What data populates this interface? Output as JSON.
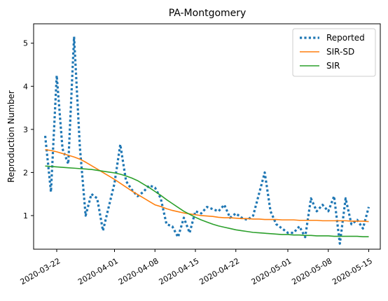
{
  "chart_data": {
    "type": "line",
    "title": "PA-Montgomery",
    "xlabel": "",
    "ylabel": "Reproduction Number",
    "x_range": [
      "2020-03-18",
      "2020-05-17"
    ],
    "ylim": [
      0.22,
      5.45
    ],
    "x_ticks": [
      "2020-03-22",
      "2020-04-01",
      "2020-04-08",
      "2020-04-15",
      "2020-04-22",
      "2020-05-01",
      "2020-05-08",
      "2020-05-15"
    ],
    "y_ticks": [
      1,
      2,
      3,
      4,
      5
    ],
    "grid": false,
    "legend_position": "top-right",
    "x": [
      "2020-03-20",
      "2020-03-21",
      "2020-03-22",
      "2020-03-23",
      "2020-03-24",
      "2020-03-25",
      "2020-03-26",
      "2020-03-27",
      "2020-03-28",
      "2020-03-29",
      "2020-03-30",
      "2020-03-31",
      "2020-04-01",
      "2020-04-02",
      "2020-04-03",
      "2020-04-04",
      "2020-04-05",
      "2020-04-06",
      "2020-04-07",
      "2020-04-08",
      "2020-04-09",
      "2020-04-10",
      "2020-04-11",
      "2020-04-12",
      "2020-04-13",
      "2020-04-14",
      "2020-04-15",
      "2020-04-16",
      "2020-04-17",
      "2020-04-18",
      "2020-04-19",
      "2020-04-20",
      "2020-04-21",
      "2020-04-22",
      "2020-04-23",
      "2020-04-24",
      "2020-04-25",
      "2020-04-26",
      "2020-04-27",
      "2020-04-28",
      "2020-04-29",
      "2020-04-30",
      "2020-05-01",
      "2020-05-02",
      "2020-05-03",
      "2020-05-04",
      "2020-05-05",
      "2020-05-06",
      "2020-05-07",
      "2020-05-08",
      "2020-05-09",
      "2020-05-10",
      "2020-05-11",
      "2020-05-12",
      "2020-05-13",
      "2020-05-14",
      "2020-05-15"
    ],
    "series": [
      {
        "name": "Reported",
        "color": "#1f77b4",
        "style": "dotted",
        "values": [
          2.85,
          1.55,
          4.25,
          2.55,
          2.2,
          5.15,
          2.6,
          1.0,
          1.5,
          1.4,
          0.65,
          1.2,
          1.75,
          2.65,
          1.8,
          1.6,
          1.45,
          1.55,
          1.7,
          1.65,
          1.4,
          0.8,
          0.75,
          0.5,
          0.95,
          0.6,
          1.1,
          1.05,
          1.2,
          1.15,
          1.1,
          1.25,
          0.95,
          1.05,
          0.95,
          0.9,
          1.0,
          1.5,
          2.0,
          1.1,
          0.8,
          0.7,
          0.6,
          0.6,
          0.75,
          0.5,
          1.4,
          1.1,
          1.25,
          1.1,
          1.45,
          0.35,
          1.4,
          0.8,
          0.9,
          0.7,
          1.2
        ]
      },
      {
        "name": "SIR-SD",
        "color": "#ff7f0e",
        "style": "solid",
        "values": [
          2.53,
          2.51,
          2.48,
          2.44,
          2.4,
          2.36,
          2.31,
          2.24,
          2.16,
          2.08,
          2.0,
          1.92,
          1.84,
          1.75,
          1.66,
          1.57,
          1.49,
          1.41,
          1.33,
          1.25,
          1.21,
          1.16,
          1.12,
          1.09,
          1.06,
          1.04,
          1.02,
          1.0,
          0.99,
          0.98,
          0.96,
          0.95,
          0.95,
          0.94,
          0.93,
          0.93,
          0.92,
          0.92,
          0.91,
          0.91,
          0.91,
          0.9,
          0.9,
          0.9,
          0.89,
          0.89,
          0.89,
          0.89,
          0.88,
          0.88,
          0.88,
          0.88,
          0.88,
          0.87,
          0.87,
          0.87,
          0.86
        ]
      },
      {
        "name": "SIR",
        "color": "#2ca02c",
        "style": "solid",
        "values": [
          2.15,
          2.14,
          2.13,
          2.12,
          2.11,
          2.1,
          2.09,
          2.08,
          2.07,
          2.05,
          2.03,
          2.01,
          1.99,
          1.96,
          1.92,
          1.87,
          1.81,
          1.73,
          1.65,
          1.56,
          1.47,
          1.37,
          1.28,
          1.19,
          1.1,
          1.03,
          0.96,
          0.9,
          0.85,
          0.8,
          0.76,
          0.73,
          0.7,
          0.67,
          0.65,
          0.63,
          0.61,
          0.6,
          0.59,
          0.58,
          0.57,
          0.56,
          0.56,
          0.55,
          0.55,
          0.54,
          0.54,
          0.53,
          0.53,
          0.53,
          0.52,
          0.52,
          0.52,
          0.52,
          0.52,
          0.51,
          0.51
        ]
      }
    ]
  }
}
